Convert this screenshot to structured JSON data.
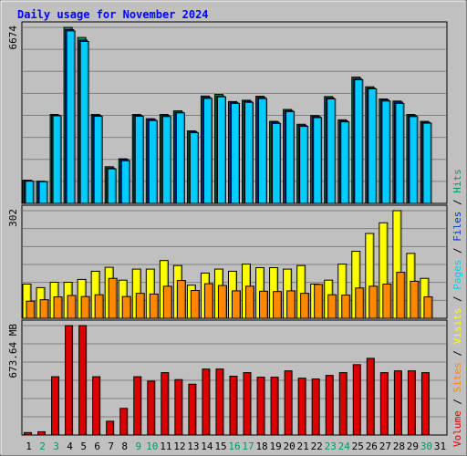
{
  "chart_data": {
    "type": "bar",
    "title": "Daily usage for November 2024",
    "colors": {
      "background": "#c0c0c0",
      "title": "#0000ff",
      "hits": "#009966",
      "files": "#0033cc",
      "pages": "#00ccff",
      "visits": "#ffff00",
      "sites": "#ff8800",
      "volume": "#dd0000",
      "weekend_label": "#009966",
      "weekday_label": "#000000"
    },
    "categories": [
      "1",
      "2",
      "3",
      "4",
      "5",
      "6",
      "7",
      "8",
      "9",
      "10",
      "11",
      "12",
      "13",
      "14",
      "15",
      "16",
      "17",
      "18",
      "19",
      "20",
      "21",
      "22",
      "23",
      "24",
      "25",
      "26",
      "27",
      "28",
      "29",
      "30",
      "31"
    ],
    "weekend_days": [
      "2",
      "3",
      "9",
      "10",
      "16",
      "17",
      "23",
      "24",
      "30"
    ],
    "panels": [
      {
        "id": "hits_files",
        "ymax_label": "6674",
        "ymax": 6674,
        "series": [
          {
            "name": "Hits",
            "values": [
              880,
              840,
              3370,
              6674,
              6290,
              3370,
              1390,
              1690,
              3370,
              3210,
              3370,
              3510,
              2750,
              4070,
              4130,
              3860,
              3910,
              4060,
              3110,
              3560,
              3000,
              3330,
              4050,
              3170,
              4790,
              4420,
              3960,
              3880,
              3370,
              3110
            ]
          },
          {
            "name": "Files",
            "values": [
              860,
              830,
              3340,
              6590,
              6190,
              3340,
              1340,
              1660,
              3340,
              3180,
              3330,
              3460,
              2720,
              4020,
              4070,
              3830,
              3870,
              4020,
              3080,
              3520,
              2960,
              3290,
              4000,
              3130,
              4730,
              4370,
              3920,
              3840,
              3330,
              3070
            ]
          },
          {
            "name": "Pages",
            "values": [
              840,
              820,
              3320,
              6540,
              6140,
              3300,
              1310,
              1620,
              3300,
              3140,
              3290,
              3430,
              2680,
              3980,
              4040,
              3790,
              3830,
              3970,
              3030,
              3480,
              2920,
              3250,
              3960,
              3090,
              4690,
              4340,
              3880,
              3790,
              3290,
              3040
            ]
          }
        ]
      },
      {
        "id": "visits_sites",
        "ymax_label": "302",
        "ymax": 302,
        "series": [
          {
            "name": "Visits",
            "values": [
              96,
              86,
              101,
              101,
              109,
              132,
              143,
              107,
              138,
              138,
              162,
              148,
              93,
              127,
              138,
              132,
              152,
              142,
              142,
              138,
              148,
              96,
              107,
              152,
              188,
              238,
              268,
              302,
              182,
              112
            ]
          },
          {
            "name": "Sites",
            "values": [
              48,
              52,
              60,
              64,
              61,
              66,
              112,
              61,
              70,
              68,
              90,
              106,
              78,
              97,
              92,
              77,
              90,
              76,
              75,
              77,
              70,
              95,
              66,
              65,
              85,
              90,
              96,
              129,
              104,
              60
            ]
          }
        ]
      },
      {
        "id": "volume",
        "ymax_label": "673.64 MB",
        "ymax": 673.64,
        "series": [
          {
            "name": "Volume",
            "values": [
              15,
              20,
              359,
              673.64,
              673.64,
              359,
              85,
              164,
              359,
              332,
              384,
              341,
              313,
              406,
              406,
              362,
              384,
              356,
              356,
              395,
              350,
              345,
              367,
              384,
              433,
              472,
              384,
              395,
              395,
              384
            ]
          }
        ]
      }
    ],
    "legend": [
      {
        "label": "Volume",
        "color": "#dd0000"
      },
      {
        "label": "Sites",
        "color": "#ff8800"
      },
      {
        "label": "Visits",
        "color": "#ffff00"
      },
      {
        "label": "Pages",
        "color": "#00ccff"
      },
      {
        "label": "Files",
        "color": "#0033cc"
      },
      {
        "label": "Hits",
        "color": "#009966"
      }
    ],
    "legend_separator": "/",
    "legend_orientation": "right-side vertical",
    "grid": true
  }
}
